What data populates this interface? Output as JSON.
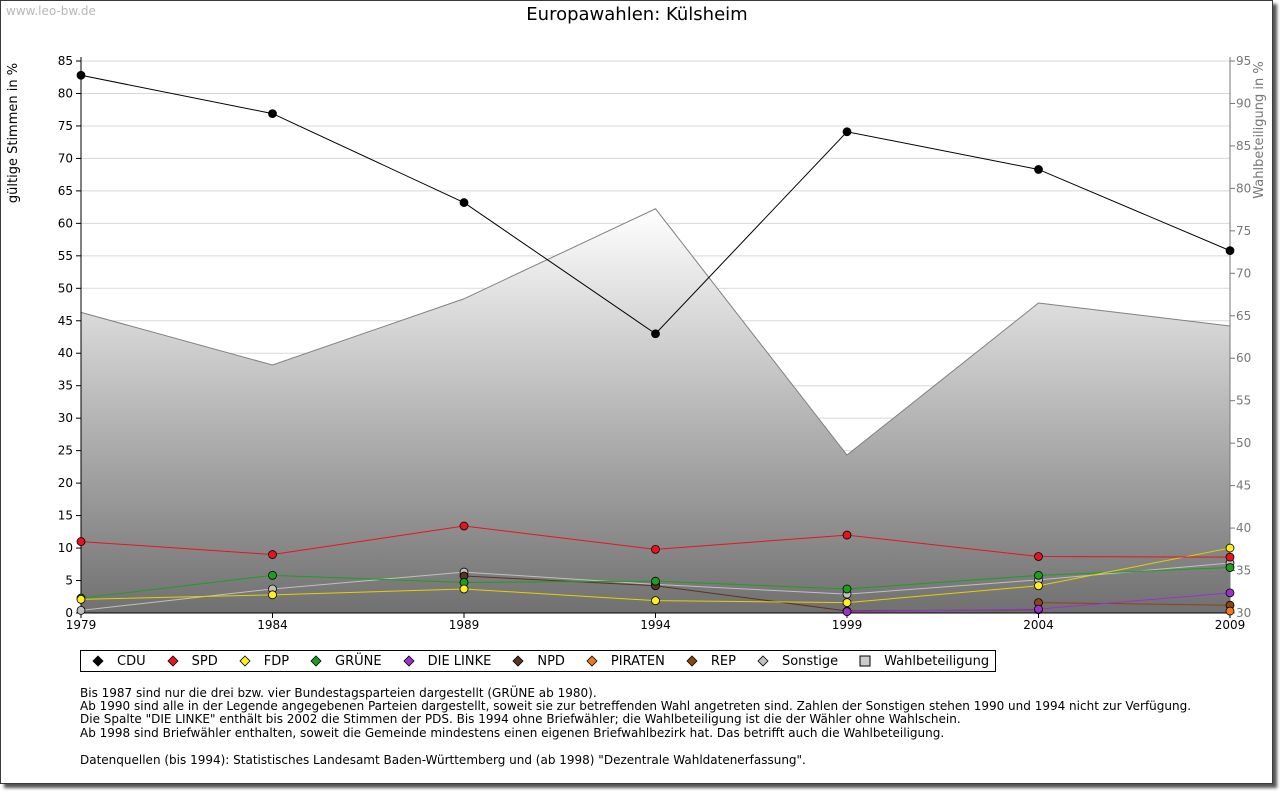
{
  "watermark": "www.leo-bw.de",
  "chart_data": {
    "type": "line",
    "title": "Europawahlen: Külsheim",
    "ylabel": "gültige Stimmen in %",
    "y2label": "Wahlbeteiligung in %",
    "x": [
      "1979",
      "1984",
      "1989",
      "1994",
      "1999",
      "2004",
      "2009"
    ],
    "ylim": [
      0,
      85
    ],
    "yticks": [
      0,
      5,
      10,
      15,
      20,
      25,
      30,
      35,
      40,
      45,
      50,
      55,
      60,
      65,
      70,
      75,
      80,
      85
    ],
    "y2lim": [
      30,
      95
    ],
    "y2ticks": [
      30,
      35,
      40,
      45,
      50,
      55,
      60,
      65,
      70,
      75,
      80,
      85,
      90,
      95
    ],
    "grid": true,
    "legend_position": "bottom",
    "series": [
      {
        "name": "CDU",
        "color": "#000000",
        "values": [
          82.8,
          76.9,
          63.2,
          43.0,
          74.1,
          68.3,
          55.8
        ]
      },
      {
        "name": "SPD",
        "color": "#e8141c",
        "values": [
          11.0,
          9.0,
          13.4,
          9.8,
          12.0,
          8.7,
          8.6
        ]
      },
      {
        "name": "FDP",
        "color": "#ffee22",
        "values": [
          2.1,
          2.8,
          3.7,
          1.9,
          1.6,
          4.2,
          10.0
        ]
      },
      {
        "name": "GRÜNE",
        "color": "#1e9e1e",
        "values": [
          2.3,
          5.8,
          4.7,
          4.9,
          3.7,
          5.8,
          7.0
        ]
      },
      {
        "name": "DIE LINKE",
        "color": "#9933cc",
        "values": [
          null,
          null,
          null,
          null,
          0.2,
          0.6,
          3.1
        ]
      },
      {
        "name": "NPD",
        "color": "#5a3422",
        "values": [
          null,
          null,
          5.7,
          4.2,
          0.3,
          0.5,
          null
        ]
      },
      {
        "name": "PIRATEN",
        "color": "#f07820",
        "values": [
          null,
          null,
          null,
          null,
          null,
          null,
          0.3
        ]
      },
      {
        "name": "REP",
        "color": "#8b4513",
        "values": [
          null,
          null,
          null,
          null,
          null,
          1.6,
          1.2
        ]
      },
      {
        "name": "Sonstige",
        "color": "#c0c0c0",
        "values": [
          0.4,
          3.7,
          6.3,
          4.4,
          2.9,
          5.1,
          7.7
        ]
      }
    ],
    "turnout": {
      "name": "Wahlbeteiligung",
      "color": "#808080",
      "axis": "right",
      "values": [
        65.4,
        59.2,
        67.0,
        77.6,
        48.6,
        66.5,
        63.8
      ]
    }
  },
  "notes": [
    "Bis 1987 sind nur die drei bzw. vier Bundestagsparteien dargestellt (GRÜNE ab 1980).",
    "Ab 1990 sind alle in der Legende angegebenen Parteien dargestellt, soweit sie zur betreffenden Wahl angetreten sind. Zahlen der Sonstigen stehen 1990 und 1994 nicht zur Verfügung.",
    "Die Spalte \"DIE LINKE\" enthält bis 2002 die Stimmen der PDS. Bis 1994 ohne Briefwähler; die Wahlbeteiligung ist die der Wähler ohne Wahlschein.",
    "Ab 1998 sind Briefwähler enthalten, soweit die Gemeinde mindestens einen eigenen Briefwahlbezirk hat. Das betrifft auch die Wahlbeteiligung."
  ],
  "source": "Datenquellen (bis 1994): Statistisches Landesamt Baden-Württemberg und (ab 1998) \"Dezentrale Wahldatenerfassung\"."
}
